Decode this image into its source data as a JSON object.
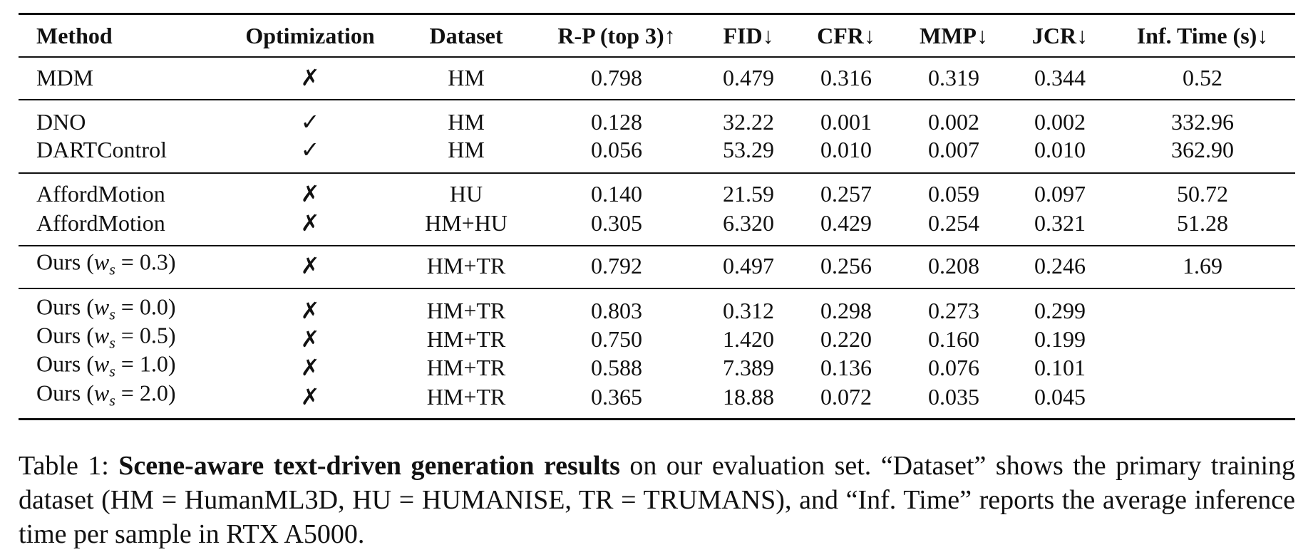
{
  "table": {
    "headers": [
      "Method",
      "Optimization",
      "Dataset",
      "R-P (top 3)↑",
      "FID↓",
      "CFR↓",
      "MMP↓",
      "JCR↓",
      "Inf. Time (s)↓"
    ],
    "groups": [
      [
        [
          "MDM",
          "✗",
          "HM",
          "0.798",
          "0.479",
          "0.316",
          "0.319",
          "0.344",
          "0.52"
        ]
      ],
      [
        [
          "DNO",
          "✓",
          "HM",
          "0.128",
          "32.22",
          "0.001",
          "0.002",
          "0.002",
          "332.96"
        ],
        [
          "DARTControl",
          "✓",
          "HM",
          "0.056",
          "53.29",
          "0.010",
          "0.007",
          "0.010",
          "362.90"
        ]
      ],
      [
        [
          "AffordMotion",
          "✗",
          "HU",
          "0.140",
          "21.59",
          "0.257",
          "0.059",
          "0.097",
          "50.72"
        ],
        [
          "AffordMotion",
          "✗",
          "HM+HU",
          "0.305",
          "6.320",
          "0.429",
          "0.254",
          "0.321",
          "51.28"
        ]
      ],
      [
        [
          {
            "text": "Ours (",
            "var": "w",
            "sub": "s",
            "tail": " = 0.3)"
          },
          "✗",
          "HM+TR",
          "0.792",
          "0.497",
          "0.256",
          "0.208",
          "0.246",
          "1.69"
        ]
      ],
      [
        [
          {
            "text": "Ours (",
            "var": "w",
            "sub": "s",
            "tail": " = 0.0)"
          },
          "✗",
          "HM+TR",
          "0.803",
          "0.312",
          "0.298",
          "0.273",
          "0.299"
        ],
        [
          {
            "text": "Ours (",
            "var": "w",
            "sub": "s",
            "tail": " = 0.5)"
          },
          "✗",
          "HM+TR",
          "0.750",
          "1.420",
          "0.220",
          "0.160",
          "0.199"
        ],
        [
          {
            "text": "Ours (",
            "var": "w",
            "sub": "s",
            "tail": " = 1.0)"
          },
          "✗",
          "HM+TR",
          "0.588",
          "7.389",
          "0.136",
          "0.076",
          "0.101"
        ],
        [
          {
            "text": "Ours (",
            "var": "w",
            "sub": "s",
            "tail": " = 2.0)"
          },
          "✗",
          "HM+TR",
          "0.365",
          "18.88",
          "0.072",
          "0.035",
          "0.045"
        ]
      ]
    ]
  },
  "caption": {
    "label": "Table 1:",
    "bold": "Scene-aware text-driven generation results",
    "text": "on our evaluation set. “Dataset” shows the primary training dataset (HM = HumanML3D, HU = HUMANISE, TR = TRUMANS), and “Inf. Time” reports the average inference time per sample in RTX A5000."
  }
}
